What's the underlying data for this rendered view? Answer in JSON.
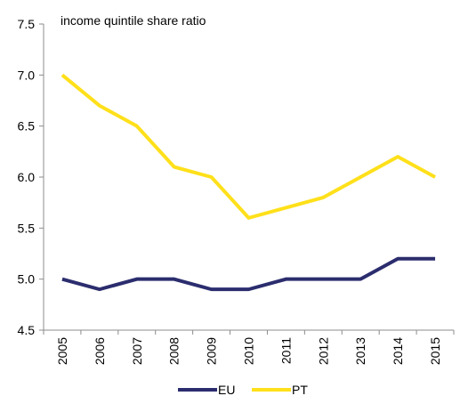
{
  "chart_data": {
    "type": "line",
    "title": "",
    "ylabel": "income quintile share ratio",
    "xlabel": "",
    "categories": [
      "2005",
      "2006",
      "2007",
      "2008",
      "2009",
      "2010",
      "2011",
      "2012",
      "2013",
      "2014",
      "2015"
    ],
    "ylim": [
      4.5,
      7.5
    ],
    "yticks": [
      "4.5",
      "5.0",
      "5.5",
      "6.0",
      "6.5",
      "7.0",
      "7.5"
    ],
    "grid": false,
    "legend_position": "bottom",
    "series": [
      {
        "name": "EU",
        "color": "#2b2d6e",
        "values": [
          5.0,
          4.9,
          5.0,
          5.0,
          4.9,
          4.9,
          5.0,
          5.0,
          5.0,
          5.2,
          5.2
        ]
      },
      {
        "name": "PT",
        "color": "#ffe01a",
        "values": [
          7.0,
          6.7,
          6.5,
          6.1,
          6.0,
          5.6,
          5.7,
          5.8,
          6.0,
          6.2,
          6.0
        ]
      }
    ]
  }
}
